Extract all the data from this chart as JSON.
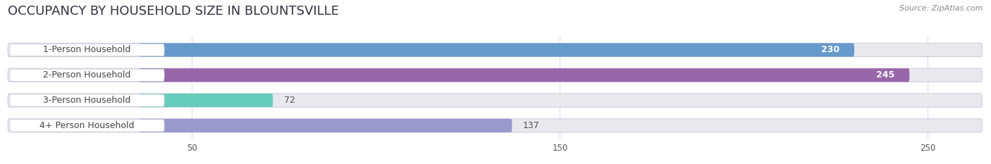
{
  "title": "OCCUPANCY BY HOUSEHOLD SIZE IN BLOUNTSVILLE",
  "source": "Source: ZipAtlas.com",
  "categories": [
    "1-Person Household",
    "2-Person Household",
    "3-Person Household",
    "4+ Person Household"
  ],
  "values": [
    230,
    245,
    72,
    137
  ],
  "bar_colors": [
    "#6699CC",
    "#9966AA",
    "#66CCBB",
    "#9999CC"
  ],
  "xlim_max": 265,
  "xticks": [
    50,
    150,
    250
  ],
  "background_color": "#ffffff",
  "bar_bg_color": "#e8e8ee",
  "label_pill_color": "#ffffff",
  "title_fontsize": 13,
  "label_fontsize": 9,
  "value_fontsize": 9,
  "bar_height": 0.52,
  "label_color": "#444444",
  "source_color": "#888888",
  "value_color_inside": "#ffffff",
  "value_color_outside": "#555555"
}
